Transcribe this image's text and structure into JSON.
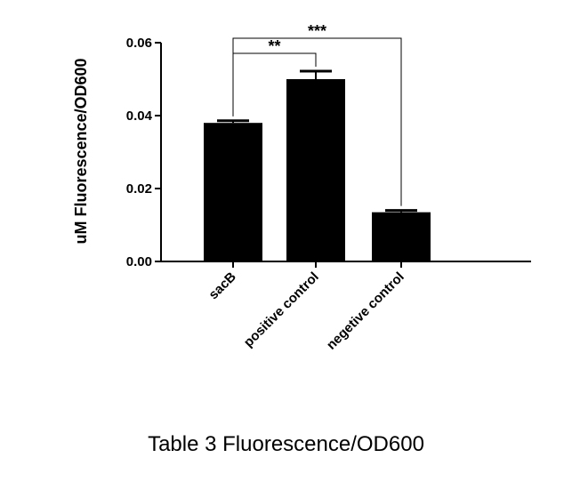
{
  "chart_data": {
    "type": "bar",
    "ylabel": "uM Fluorescence/OD600",
    "xlabel": "",
    "ylim": [
      0,
      0.06
    ],
    "yticks": [
      0.0,
      0.02,
      0.04,
      0.06
    ],
    "ytick_labels": [
      "0.00",
      "0.02",
      "0.04",
      "0.06"
    ],
    "categories": [
      "sacB",
      "positive control",
      "negetive control"
    ],
    "values": [
      0.038,
      0.05,
      0.0135
    ],
    "errors": [
      0.0006,
      0.0022,
      0.0005
    ],
    "bar_color": "#000000",
    "grid": false,
    "significance": [
      {
        "from": 0,
        "to": 1,
        "label": "**"
      },
      {
        "from": 0,
        "to": 2,
        "label": "***"
      }
    ]
  },
  "caption": "Table 3 Fluorescence/OD600"
}
